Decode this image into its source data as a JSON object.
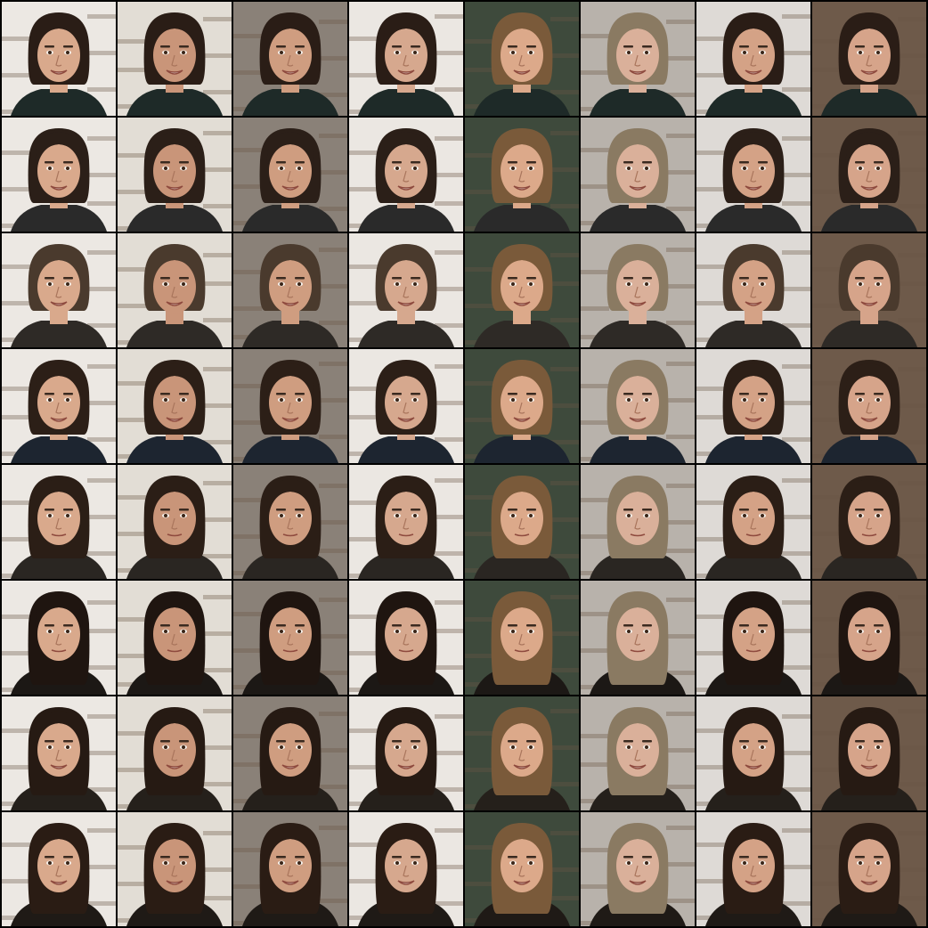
{
  "grid": {
    "rows": 8,
    "cols": 8,
    "description_kind": "face-sample-grid",
    "column_backgrounds": [
      "#ece8e3",
      "#e2ddd5",
      "#8a8178",
      "#ebe7e2",
      "#3e4a3c",
      "#b8b2ab",
      "#dedad6",
      "#6e5a4a"
    ],
    "column_skin": [
      "#d9a98c",
      "#c99579",
      "#cf9d80",
      "#d6a88e",
      "#dca98a",
      "#dab09a",
      "#d4a286",
      "#d6a48a"
    ],
    "row_hair": [
      "#2a1d16",
      "#2b1f18",
      "#4a3a2d",
      "#2c1f17",
      "#2b1e16",
      "#1f1510",
      "#261a13",
      "#2a1c14"
    ],
    "column_hair_tint": [
      "none",
      "none",
      "none",
      "none",
      "#7a5a3a",
      "#8a7a62",
      "none",
      "none"
    ],
    "row_hair_length": [
      0.55,
      0.6,
      0.45,
      0.6,
      0.75,
      0.95,
      0.85,
      0.9
    ],
    "row_clothing": [
      "#1e2a28",
      "#2a2a2a",
      "#2e2a26",
      "#1d2530",
      "#2a2622",
      "#1c1815",
      "#25201b",
      "#1f1a16"
    ]
  }
}
